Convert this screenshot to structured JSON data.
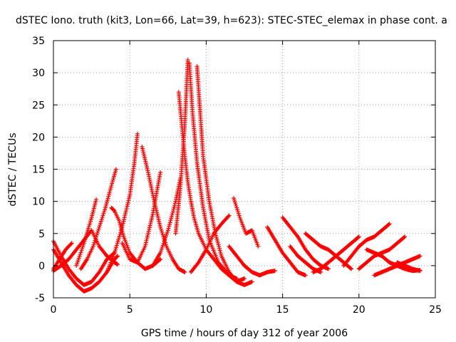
{
  "chart_data": {
    "type": "scatter",
    "title": "dSTEC Iono. truth (kit3, Lon=66, Lat=39, h=623): STEC-STEC_elemax in phase cont. a",
    "xlabel": "GPS time / hours of day 312 of year 2006",
    "ylabel": "dSTEC  / TECUs",
    "xlim": [
      0,
      25
    ],
    "ylim": [
      -5,
      35
    ],
    "x_ticks": [
      0,
      5,
      10,
      15,
      20,
      25
    ],
    "y_ticks": [
      -5,
      0,
      5,
      10,
      15,
      20,
      25,
      30,
      35
    ],
    "grid": true,
    "marker": "+",
    "color": "#ff0000",
    "arcs": [
      {
        "x": [
          0.0,
          0.5,
          1.0,
          1.5,
          2.0,
          2.5,
          3.0,
          3.5,
          4.0
        ],
        "y": [
          3.8,
          1.5,
          -0.5,
          -2.0,
          -3.0,
          -2.5,
          -1.0,
          1.0,
          2.0
        ]
      },
      {
        "x": [
          0.0,
          0.5,
          1.0,
          1.5,
          2.0,
          2.5,
          3.0,
          3.5,
          4.0,
          4.2
        ],
        "y": [
          2.5,
          0.5,
          -1.5,
          -3.0,
          -4.0,
          -3.5,
          -2.5,
          -1.0,
          1.0,
          1.5
        ]
      },
      {
        "x": [
          0.0,
          0.4,
          0.8,
          1.2
        ],
        "y": [
          -0.5,
          1.0,
          2.5,
          3.5
        ]
      },
      {
        "x": [
          0.0,
          0.5,
          1.0,
          1.5,
          2.0,
          2.5,
          3.0,
          3.5,
          4.0,
          4.2
        ],
        "y": [
          -0.8,
          0.0,
          1.0,
          2.5,
          4.0,
          5.5,
          3.0,
          1.5,
          0.5,
          0.2
        ]
      },
      {
        "x": [
          1.5,
          2.0,
          2.5,
          2.8
        ],
        "y": [
          0.0,
          3.5,
          7.5,
          10.3
        ]
      },
      {
        "x": [
          1.8,
          2.2,
          2.6,
          3.0,
          3.4,
          3.8,
          4.1
        ],
        "y": [
          -0.5,
          1.0,
          3.0,
          6.0,
          9.0,
          12.5,
          15.0
        ]
      },
      {
        "x": [
          3.5,
          4.0,
          4.5,
          5.0,
          5.3,
          5.5
        ],
        "y": [
          -1.0,
          2.0,
          6.0,
          11.0,
          16.0,
          20.5
        ]
      },
      {
        "x": [
          3.8,
          4.0,
          4.3,
          4.6,
          5.0,
          5.5,
          6.0,
          6.5,
          7.0
        ],
        "y": [
          9.0,
          8.5,
          7.0,
          4.5,
          2.0,
          0.5,
          -0.5,
          0.0,
          1.0
        ]
      },
      {
        "x": [
          5.8,
          6.2,
          6.6,
          7.0,
          7.4,
          7.8,
          8.2,
          8.6
        ],
        "y": [
          18.5,
          14.5,
          10.0,
          6.0,
          3.0,
          1.0,
          -0.5,
          -1.0
        ]
      },
      {
        "x": [
          4.5,
          5.0,
          5.5,
          6.0,
          6.5,
          7.0
        ],
        "y": [
          3.5,
          1.0,
          0.5,
          3.0,
          8.0,
          14.5
        ]
      },
      {
        "x": [
          6.5,
          7.0,
          7.5,
          8.0,
          8.3
        ],
        "y": [
          0.0,
          2.0,
          5.5,
          10.0,
          13.5
        ]
      },
      {
        "x": [
          8.2,
          8.4,
          8.6,
          8.8,
          9.0,
          9.2,
          9.5,
          10.0,
          10.5,
          11.0,
          11.5,
          12.0
        ],
        "y": [
          27.0,
          22.0,
          17.0,
          13.0,
          10.0,
          7.5,
          5.0,
          2.5,
          1.0,
          -0.5,
          -1.5,
          -2.0
        ]
      },
      {
        "x": [
          8.0,
          8.3,
          8.6,
          8.8
        ],
        "y": [
          5.0,
          12.0,
          22.0,
          32.0
        ]
      },
      {
        "x": [
          8.9,
          9.1,
          9.4,
          9.8,
          10.2,
          10.8,
          11.5,
          12.0,
          12.5
        ],
        "y": [
          31.5,
          24.0,
          16.0,
          9.0,
          4.0,
          0.5,
          -1.5,
          -2.5,
          -2.0
        ]
      },
      {
        "x": [
          9.4,
          9.6,
          9.8,
          10.2,
          10.6,
          11.0,
          11.5,
          12.0,
          12.5,
          13.0
        ],
        "y": [
          31.0,
          24.0,
          17.0,
          10.0,
          5.0,
          1.5,
          -1.0,
          -2.5,
          -3.0,
          -2.5
        ]
      },
      {
        "x": [
          9.0,
          9.5,
          10.0,
          10.5,
          11.0,
          11.5
        ],
        "y": [
          -1.0,
          0.5,
          2.5,
          5.0,
          6.5,
          7.8
        ]
      },
      {
        "x": [
          11.8,
          12.2,
          12.6,
          13.0,
          13.4
        ],
        "y": [
          10.5,
          7.5,
          5.0,
          5.5,
          3.0
        ]
      },
      {
        "x": [
          11.5,
          12.0,
          12.5,
          13.0,
          13.5,
          14.0,
          14.5
        ],
        "y": [
          3.0,
          1.5,
          0.0,
          -1.0,
          -1.5,
          -1.0,
          -0.8
        ]
      },
      {
        "x": [
          14.0,
          14.5,
          15.0,
          15.5,
          16.0,
          16.5
        ],
        "y": [
          6.0,
          4.0,
          2.0,
          0.5,
          -1.0,
          -1.5
        ]
      },
      {
        "x": [
          15.0,
          15.5,
          16.0,
          16.5,
          17.0,
          17.5,
          18.0
        ],
        "y": [
          7.5,
          6.0,
          4.5,
          2.5,
          1.0,
          0.0,
          -0.5
        ]
      },
      {
        "x": [
          15.5,
          16.0,
          16.5,
          17.0,
          17.5
        ],
        "y": [
          3.0,
          1.5,
          0.5,
          -0.5,
          -1.0
        ]
      },
      {
        "x": [
          16.5,
          17.0,
          17.5,
          18.0,
          18.5,
          19.0,
          19.5
        ],
        "y": [
          5.0,
          4.0,
          3.0,
          2.5,
          1.5,
          0.5,
          -0.5
        ]
      },
      {
        "x": [
          17.0,
          17.5,
          18.0,
          18.5,
          19.0,
          19.5,
          20.0
        ],
        "y": [
          -1.0,
          -0.5,
          0.5,
          1.5,
          2.5,
          3.5,
          4.5
        ]
      },
      {
        "x": [
          19.0,
          19.5,
          20.0,
          20.5,
          21.0,
          21.5,
          22.0
        ],
        "y": [
          0.0,
          1.5,
          3.0,
          4.0,
          4.5,
          5.5,
          6.5
        ]
      },
      {
        "x": [
          20.0,
          20.5,
          21.0,
          21.5,
          22.0,
          22.5,
          23.0
        ],
        "y": [
          -0.5,
          0.5,
          1.5,
          2.0,
          2.5,
          3.5,
          4.5
        ]
      },
      {
        "x": [
          21.0,
          21.5,
          22.0,
          22.5,
          23.0,
          23.5,
          24.0
        ],
        "y": [
          -1.5,
          -1.0,
          -0.5,
          0.0,
          0.5,
          1.0,
          1.5
        ]
      },
      {
        "x": [
          20.5,
          21.0,
          21.5,
          22.0,
          22.5,
          23.0,
          23.5,
          24.0
        ],
        "y": [
          2.5,
          2.0,
          1.5,
          0.5,
          0.0,
          -0.5,
          -0.8,
          -0.7
        ]
      },
      {
        "x": [
          22.5,
          23.0,
          23.5,
          24.0
        ],
        "y": [
          0.5,
          0.0,
          -0.5,
          -0.8
        ]
      }
    ]
  }
}
